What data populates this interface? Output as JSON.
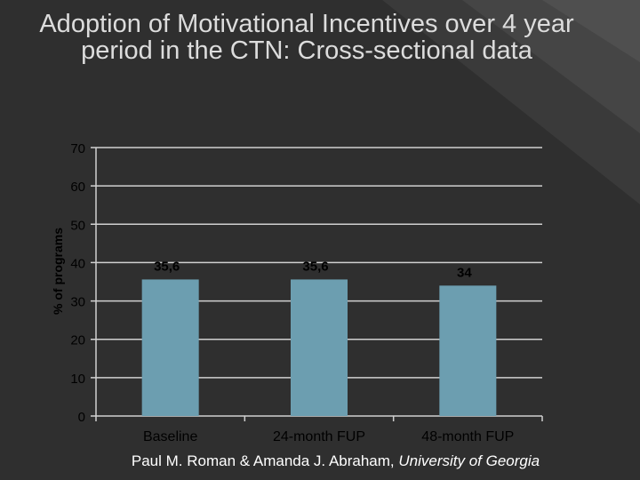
{
  "title": "Adoption of Motivational Incentives over 4 year period in the CTN:  Cross-sectional data",
  "footer": {
    "authors": "Paul M. Roman & Amanda J. Abraham, ",
    "affiliation": "University of Georgia"
  },
  "colors": {
    "background": "#2f2f2f",
    "bar": "#6c9eb0",
    "grid": "#d0d0d0",
    "text": "#000000"
  },
  "chart_data": {
    "type": "bar",
    "categories": [
      "Baseline",
      "24-month FUP",
      "48-month FUP"
    ],
    "values": [
      35.6,
      35.6,
      34
    ],
    "data_labels": [
      "35,6",
      "35,6",
      "34"
    ],
    "ylabel": "% of programs",
    "ylim": [
      0,
      70
    ],
    "yticks": [
      "0",
      "10",
      "20",
      "30",
      "40",
      "50",
      "60",
      "70"
    ],
    "grid": true
  }
}
